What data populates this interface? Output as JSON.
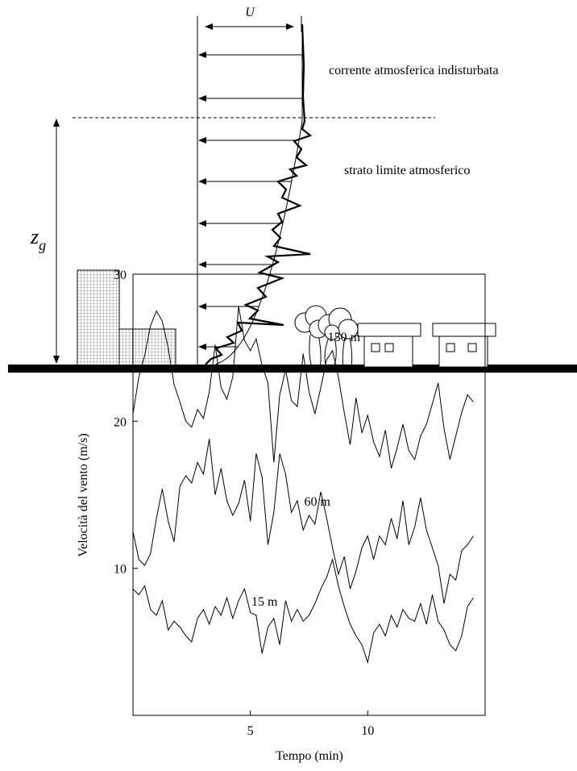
{
  "diagram": {
    "velocity_symbol": "U",
    "free_stream_label": "corrente atmosferica indisturbata",
    "boundary_layer_label": "strato limite atmosferico",
    "height_symbol": "z",
    "height_subscript": "g"
  },
  "chart_data": {
    "type": "line",
    "x": [
      0,
      0.25,
      0.5,
      0.75,
      1,
      1.25,
      1.5,
      1.75,
      2,
      2.25,
      2.5,
      2.75,
      3,
      3.25,
      3.5,
      3.75,
      4,
      4.25,
      4.5,
      4.75,
      5,
      5.25,
      5.5,
      5.75,
      6,
      6.25,
      6.5,
      6.75,
      7,
      7.25,
      7.5,
      7.75,
      8,
      8.25,
      8.5,
      8.75,
      9,
      9.25,
      9.5,
      9.75,
      10,
      10.25,
      10.5,
      10.75,
      11,
      11.25,
      11.5,
      11.75,
      12,
      12.25,
      12.5,
      12.75,
      13,
      13.25,
      13.5,
      13.75,
      14,
      14.25,
      14.5
    ],
    "series": [
      {
        "name": "150 m",
        "color": "#000000",
        "values": [
          20.5,
          23,
          24.5,
          26.5,
          27.5,
          26.8,
          25,
          22.5,
          21.3,
          20,
          19.6,
          20.8,
          20.2,
          22,
          25.2,
          22.3,
          21.5,
          23,
          27.8,
          25.5,
          24.8,
          25.6,
          23.8,
          22.6,
          17.2,
          21.8,
          23.5,
          21.4,
          21,
          24.6,
          22,
          20.5,
          22.3,
          24.2,
          24.8,
          23,
          20.6,
          18.4,
          21.6,
          19.2,
          20.4,
          18.6,
          17.6,
          19.4,
          16.8,
          18.2,
          19.8,
          18,
          17.4,
          19,
          19.8,
          21.2,
          22.6,
          19.5,
          17.4,
          19,
          20.6,
          21.8,
          21.3
        ]
      },
      {
        "name": "60 m",
        "color": "#000000",
        "values": [
          12.5,
          10.6,
          10.2,
          11,
          13.4,
          15.4,
          13.2,
          11.8,
          15.6,
          16.3,
          15.8,
          17.2,
          16.4,
          18.8,
          15,
          16.8,
          14.6,
          13.6,
          14.4,
          16,
          13.2,
          17.8,
          16.2,
          11.6,
          13.8,
          17.8,
          16.4,
          13.8,
          14.6,
          12.6,
          13.6,
          13,
          15.2,
          13.4,
          11.4,
          9.6,
          10.8,
          8.6,
          9.8,
          11.4,
          12.2,
          10.6,
          12.2,
          11.6,
          13.4,
          12,
          14.6,
          11.6,
          12.8,
          14.8,
          12.6,
          11.4,
          10.2,
          7.6,
          9.6,
          9.2,
          11.2,
          11.6,
          12.2
        ]
      },
      {
        "name": "15 m",
        "color": "#000000",
        "values": [
          8.6,
          8.2,
          8.8,
          7.2,
          6.8,
          7.8,
          5.8,
          6.4,
          6,
          5.4,
          5,
          6.6,
          7.2,
          6.2,
          7.4,
          6.8,
          8,
          6.6,
          7.8,
          8.6,
          7,
          6.8,
          4.2,
          6,
          6.6,
          4.8,
          7.8,
          6.4,
          7.2,
          6.4,
          6.8,
          7.6,
          8.6,
          9.4,
          10.6,
          8.8,
          7.4,
          6.2,
          5.4,
          4.8,
          3.6,
          5.6,
          6.2,
          5.4,
          6.8,
          6,
          7.2,
          6.6,
          6.4,
          7.6,
          6.2,
          8.2,
          6.4,
          5.8,
          4.8,
          4.4,
          5.4,
          7.4,
          8
        ]
      }
    ],
    "xlim": [
      0,
      15
    ],
    "ylim": [
      0,
      30
    ],
    "xticks": [
      5,
      10
    ],
    "yticks": [
      10,
      20,
      30
    ],
    "x_label": "Tempo (min)",
    "y_label": "Velocità del vento (m/s)"
  }
}
